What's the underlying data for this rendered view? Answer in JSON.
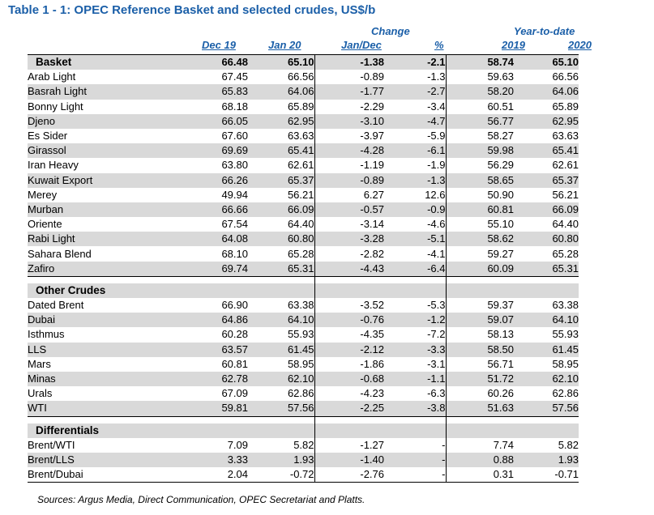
{
  "title": "Table 1 - 1: OPEC Reference Basket and selected crudes, US$/b",
  "headers": {
    "change": "Change",
    "ytd": "Year-to-date",
    "dec19": "Dec 19",
    "jan20": "Jan 20",
    "jandec": "Jan/Dec",
    "pct": "%",
    "y2019": "2019",
    "y2020": "2020"
  },
  "sections": [
    {
      "group": "Basket",
      "group_values": [
        "66.48",
        "65.10",
        "-1.38",
        "-2.1",
        "58.74",
        "65.10"
      ],
      "rows": [
        [
          "Arab Light",
          "67.45",
          "66.56",
          "-0.89",
          "-1.3",
          "59.63",
          "66.56"
        ],
        [
          "Basrah Light",
          "65.83",
          "64.06",
          "-1.77",
          "-2.7",
          "58.20",
          "64.06"
        ],
        [
          "Bonny Light",
          "68.18",
          "65.89",
          "-2.29",
          "-3.4",
          "60.51",
          "65.89"
        ],
        [
          "Djeno",
          "66.05",
          "62.95",
          "-3.10",
          "-4.7",
          "56.77",
          "62.95"
        ],
        [
          "Es Sider",
          "67.60",
          "63.63",
          "-3.97",
          "-5.9",
          "58.27",
          "63.63"
        ],
        [
          "Girassol",
          "69.69",
          "65.41",
          "-4.28",
          "-6.1",
          "59.98",
          "65.41"
        ],
        [
          "Iran Heavy",
          "63.80",
          "62.61",
          "-1.19",
          "-1.9",
          "56.29",
          "62.61"
        ],
        [
          "Kuwait Export",
          "66.26",
          "65.37",
          "-0.89",
          "-1.3",
          "58.65",
          "65.37"
        ],
        [
          "Merey",
          "49.94",
          "56.21",
          "6.27",
          "12.6",
          "50.90",
          "56.21"
        ],
        [
          "Murban",
          "66.66",
          "66.09",
          "-0.57",
          "-0.9",
          "60.81",
          "66.09"
        ],
        [
          "Oriente",
          "67.54",
          "64.40",
          "-3.14",
          "-4.6",
          "55.10",
          "64.40"
        ],
        [
          "Rabi Light",
          "64.08",
          "60.80",
          "-3.28",
          "-5.1",
          "58.62",
          "60.80"
        ],
        [
          "Sahara Blend",
          "68.10",
          "65.28",
          "-2.82",
          "-4.1",
          "59.27",
          "65.28"
        ],
        [
          "Zafiro",
          "69.74",
          "65.31",
          "-4.43",
          "-6.4",
          "60.09",
          "65.31"
        ]
      ]
    },
    {
      "group": "Other Crudes",
      "group_values": [
        "",
        "",
        "",
        "",
        "",
        ""
      ],
      "rows": [
        [
          "Dated Brent",
          "66.90",
          "63.38",
          "-3.52",
          "-5.3",
          "59.37",
          "63.38"
        ],
        [
          "Dubai",
          "64.86",
          "64.10",
          "-0.76",
          "-1.2",
          "59.07",
          "64.10"
        ],
        [
          "Isthmus",
          "60.28",
          "55.93",
          "-4.35",
          "-7.2",
          "58.13",
          "55.93"
        ],
        [
          "LLS",
          "63.57",
          "61.45",
          "-2.12",
          "-3.3",
          "58.50",
          "61.45"
        ],
        [
          "Mars",
          "60.81",
          "58.95",
          "-1.86",
          "-3.1",
          "56.71",
          "58.95"
        ],
        [
          "Minas",
          "62.78",
          "62.10",
          "-0.68",
          "-1.1",
          "51.72",
          "62.10"
        ],
        [
          "Urals",
          "67.09",
          "62.86",
          "-4.23",
          "-6.3",
          "60.26",
          "62.86"
        ],
        [
          "WTI",
          "59.81",
          "57.56",
          "-2.25",
          "-3.8",
          "51.63",
          "57.56"
        ]
      ]
    },
    {
      "group": "Differentials",
      "group_values": [
        "",
        "",
        "",
        "",
        "",
        ""
      ],
      "rows": [
        [
          "Brent/WTI",
          "7.09",
          "5.82",
          "-1.27",
          "-",
          "7.74",
          "5.82"
        ],
        [
          "Brent/LLS",
          "3.33",
          "1.93",
          "-1.40",
          "-",
          "0.88",
          "1.93"
        ],
        [
          "Brent/Dubai",
          "2.04",
          "-0.72",
          "-2.76",
          "-",
          "0.31",
          "-0.71"
        ]
      ]
    }
  ],
  "source_note": "Sources: Argus Media, Direct Communication, OPEC Secretariat and Platts.",
  "colors": {
    "header_blue": "#1b5fa8",
    "shade": "#d9d9d9"
  }
}
